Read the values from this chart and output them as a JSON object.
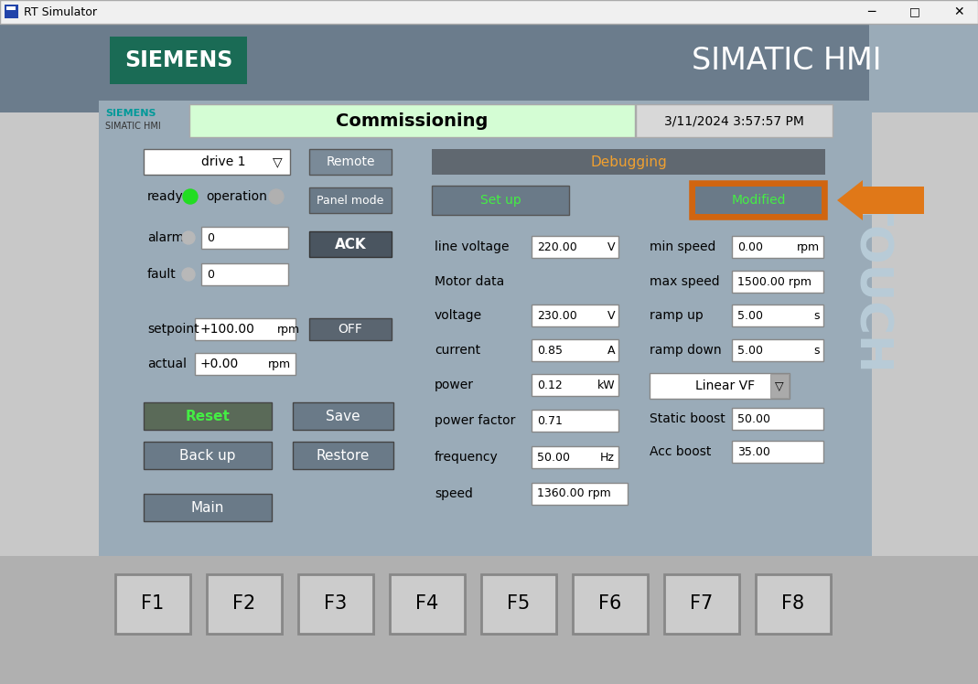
{
  "window_title": "RT Simulator",
  "bg_outer": "#c8c8c8",
  "bg_header": "#6e7f8e",
  "bg_panel": "#8a9baa",
  "bg_inner_panel": "#9aabb8",
  "siemens_box_color": "#1a6b55",
  "simatic_hmi_text": "SIMATIC HMI",
  "siemens_label": "SIEMENS",
  "simatic_label": "SIMATIC HMI",
  "commissioning_text": "Commissioning",
  "datetime_text": "3/11/2024 3:57:57 PM",
  "drive_text": "drive 1",
  "remote_text": "Remote",
  "panel_mode_text": "Panel mode",
  "debugging_text": "Debugging",
  "setup_text": "Set up",
  "modified_text": "Modified",
  "ready_text": "ready",
  "operation_text": "operation",
  "alarm_text": "alarm",
  "fault_text": "fault",
  "alarm_value": "0",
  "fault_value": "0",
  "setpoint_label": "setpoint",
  "setpoint_value": "+100.00",
  "setpoint_unit": "rpm",
  "actual_label": "actual",
  "actual_value": "+0.00",
  "actual_unit": "rpm",
  "ack_text": "ACK",
  "off_text": "OFF",
  "reset_text": "Reset",
  "save_text": "Save",
  "backup_text": "Back up",
  "restore_text": "Restore",
  "main_text": "Main",
  "line_voltage_label": "line voltage",
  "line_voltage_value": "220.00",
  "line_voltage_unit": "V",
  "motor_data_label": "Motor data",
  "voltage_label": "voltage",
  "voltage_value": "230.00",
  "voltage_unit": "V",
  "current_label": "current",
  "current_value": "0.85",
  "current_unit": "A",
  "power_label": "power",
  "power_value": "0.12",
  "power_unit": "kW",
  "power_factor_label": "power factor",
  "power_factor_value": "0.71",
  "frequency_label": "frequency",
  "frequency_value": "50.00",
  "frequency_unit": "Hz",
  "speed_label": "speed",
  "speed_value": "1360.00 rpm",
  "min_speed_label": "min speed",
  "min_speed_value": "0.00",
  "min_speed_unit": "rpm",
  "max_speed_label": "max speed",
  "max_speed_value": "1500.00 rpm",
  "ramp_up_label": "ramp up",
  "ramp_up_value": "5.00",
  "ramp_up_unit": "s",
  "ramp_down_label": "ramp down",
  "ramp_down_value": "5.00",
  "ramp_down_unit": "s",
  "linear_vf_text": "Linear VF",
  "static_boost_label": "Static boost",
  "static_boost_value": "50.00",
  "acc_boost_label": "Acc boost",
  "acc_boost_value": "35.00",
  "touch_text": "TOUCH",
  "fkeys": [
    "F1",
    "F2",
    "F3",
    "F4",
    "F5",
    "F6",
    "F7",
    "F8"
  ],
  "arrow_color": "#e07818",
  "modified_border_color": "#d06510",
  "green_led_color": "#22dd22",
  "gray_led_color": "#b0b0b0",
  "button_bg": "#6a7a88",
  "button_bg_dark": "#505860",
  "green_header_bg": "#d4fdd4",
  "datetime_bg": "#d8d8d8",
  "siemens_teal": "#009999",
  "input_bg": "#ffffff",
  "reset_green_text": "#44ee44",
  "setup_green_text": "#44ee44",
  "modified_green_text": "#44ee44",
  "touch_color": "#b8ccd8"
}
